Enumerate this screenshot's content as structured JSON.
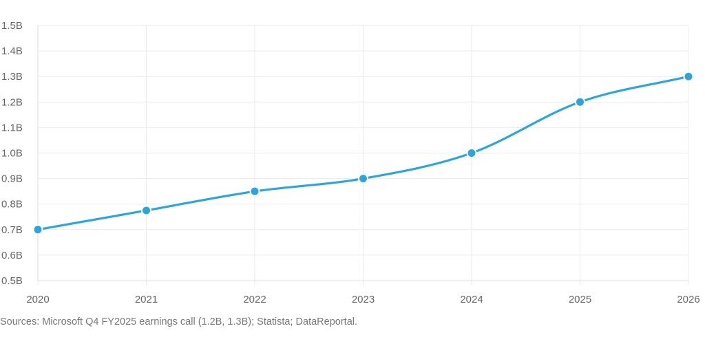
{
  "chart_data": {
    "type": "line",
    "title": "",
    "xlabel": "",
    "ylabel": "",
    "x": [
      "2020",
      "2021",
      "2022",
      "2023",
      "2024",
      "2025",
      "2026"
    ],
    "series": [
      {
        "values": [
          0.7,
          0.775,
          0.85,
          0.9,
          1.0,
          1.2,
          1.3
        ],
        "color": "#2ba6dc"
      }
    ],
    "ylim": [
      0.5,
      1.5
    ],
    "y_ticks": [
      1.5,
      1.4,
      1.3,
      1.2,
      1.1,
      1.0,
      0.9,
      0.8,
      0.7,
      0.6,
      0.5
    ],
    "y_tick_labels": [
      "1.5B",
      "1.4B",
      "1.3B",
      "1.2B",
      "1.1B",
      "1.0B",
      "0.9B",
      "0.8B",
      "0.7B",
      "0.6B",
      "0.5B"
    ],
    "grid": true,
    "legend": "none",
    "smooth": true
  },
  "footer": {
    "source": "Sources: Microsoft Q4 FY2025 earnings call (1.2B, 1.3B); Statista; DataReportal."
  }
}
